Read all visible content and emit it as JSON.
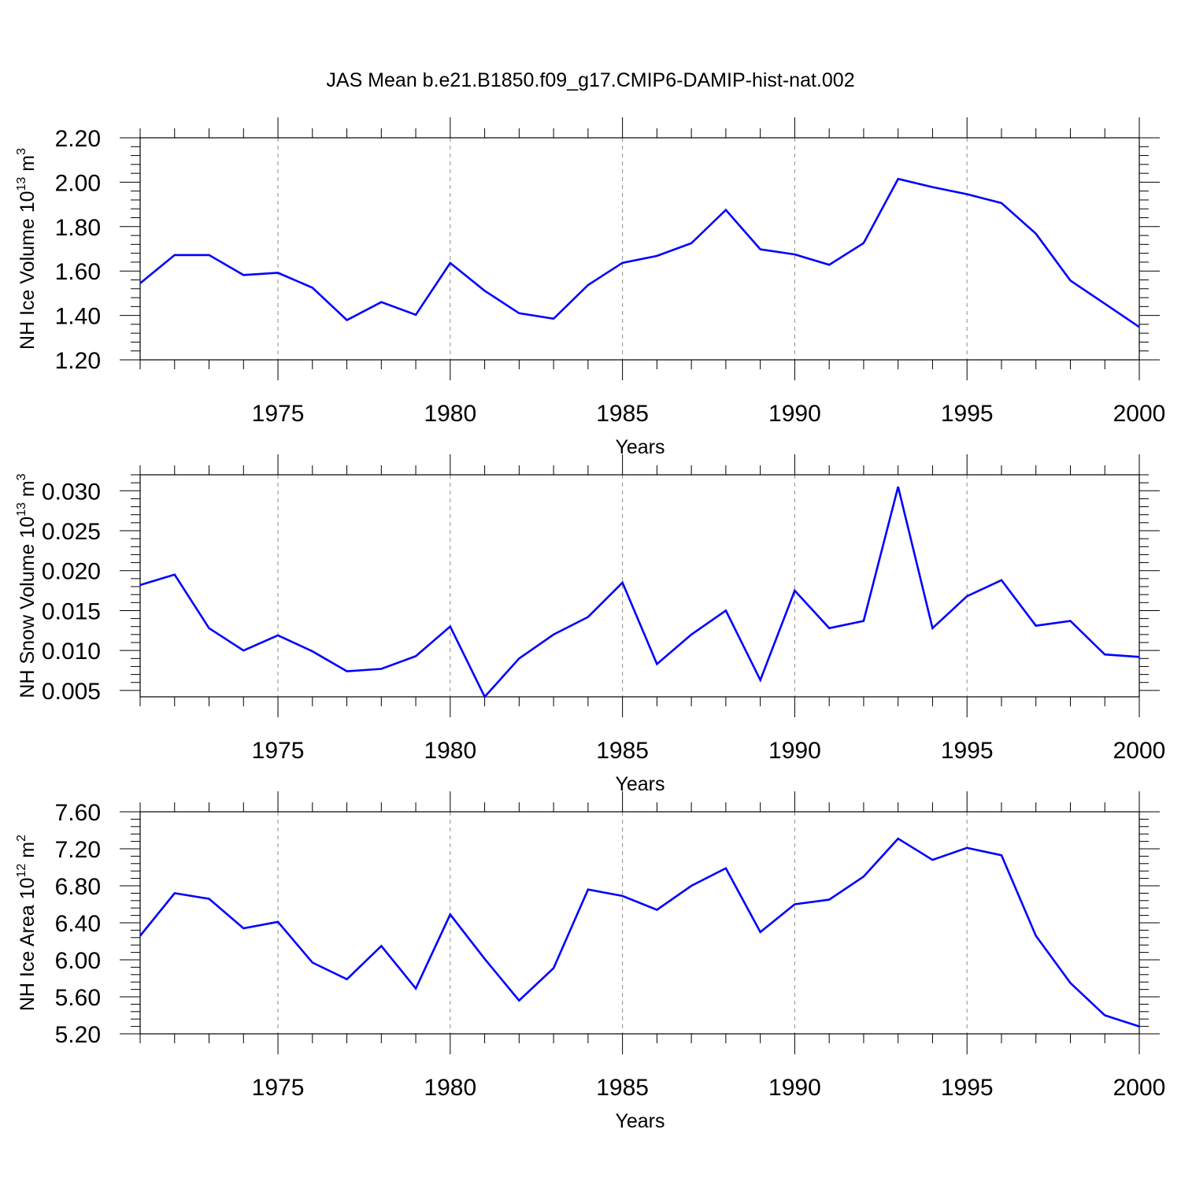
{
  "title": "JAS Mean b.e21.B1850.f09_g17.CMIP6-DAMIP-hist-nat.002",
  "line_color": "#0000ff",
  "chart_data": [
    {
      "type": "line",
      "xlabel": "Years",
      "ylabel": "NH Ice Volume 10",
      "ylabel_exp": "13",
      "ylabel_unit": " m",
      "ylabel_unit_exp": "3",
      "xlim": [
        1971,
        2000
      ],
      "ylim": [
        1.2,
        2.2
      ],
      "x_ticks": [
        1975,
        1980,
        1985,
        1990,
        1995,
        2000
      ],
      "x_tick_labels": [
        "1975",
        "1980",
        "1985",
        "1990",
        "1995",
        "2000"
      ],
      "y_ticks": [
        1.2,
        1.4,
        1.6,
        1.8,
        2.0,
        2.2
      ],
      "y_tick_labels": [
        "1.20",
        "1.40",
        "1.60",
        "1.80",
        "2.00",
        "2.20"
      ],
      "x": [
        1971,
        1972,
        1973,
        1974,
        1975,
        1976,
        1977,
        1978,
        1979,
        1980,
        1981,
        1982,
        1983,
        1984,
        1985,
        1986,
        1987,
        1988,
        1989,
        1990,
        1991,
        1992,
        1993,
        1994,
        1995,
        1996,
        1997,
        1998,
        1999,
        2000
      ],
      "values": [
        1.545,
        1.672,
        1.672,
        1.582,
        1.592,
        1.525,
        1.379,
        1.46,
        1.403,
        1.636,
        1.511,
        1.41,
        1.385,
        1.537,
        1.637,
        1.668,
        1.725,
        1.875,
        1.698,
        1.675,
        1.628,
        1.726,
        2.015,
        1.978,
        1.946,
        1.906,
        1.768,
        1.557,
        1.453,
        1.348
      ]
    },
    {
      "type": "line",
      "xlabel": "Years",
      "ylabel": "NH Snow Volume 10",
      "ylabel_exp": "13",
      "ylabel_unit": " m",
      "ylabel_unit_exp": "3",
      "xlim": [
        1971,
        2000
      ],
      "ylim": [
        0.0042,
        0.032
      ],
      "x_ticks": [
        1975,
        1980,
        1985,
        1990,
        1995,
        2000
      ],
      "x_tick_labels": [
        "1975",
        "1980",
        "1985",
        "1990",
        "1995",
        "2000"
      ],
      "y_ticks": [
        0.005,
        0.01,
        0.015,
        0.02,
        0.025,
        0.03
      ],
      "y_tick_labels": [
        "0.005",
        "0.010",
        "0.015",
        "0.020",
        "0.025",
        "0.030"
      ],
      "x": [
        1971,
        1972,
        1973,
        1974,
        1975,
        1976,
        1977,
        1978,
        1979,
        1980,
        1981,
        1982,
        1983,
        1984,
        1985,
        1986,
        1987,
        1988,
        1989,
        1990,
        1991,
        1992,
        1993,
        1994,
        1995,
        1996,
        1997,
        1998,
        1999,
        2000
      ],
      "values": [
        0.0182,
        0.0195,
        0.0128,
        0.01,
        0.0119,
        0.0099,
        0.0074,
        0.0077,
        0.0093,
        0.013,
        0.0042,
        0.009,
        0.012,
        0.0142,
        0.0185,
        0.0083,
        0.012,
        0.015,
        0.0063,
        0.0175,
        0.0128,
        0.0137,
        0.0305,
        0.0128,
        0.0168,
        0.0188,
        0.0131,
        0.0137,
        0.0095,
        0.0092
      ]
    },
    {
      "type": "line",
      "xlabel": "Years",
      "ylabel": "NH Ice Area 10",
      "ylabel_exp": "12",
      "ylabel_unit": " m",
      "ylabel_unit_exp": "2",
      "xlim": [
        1971,
        2000
      ],
      "ylim": [
        5.2,
        7.6
      ],
      "x_ticks": [
        1975,
        1980,
        1985,
        1990,
        1995,
        2000
      ],
      "x_tick_labels": [
        "1975",
        "1980",
        "1985",
        "1990",
        "1995",
        "2000"
      ],
      "y_ticks": [
        5.2,
        5.6,
        6.0,
        6.4,
        6.8,
        7.2,
        7.6
      ],
      "y_tick_labels": [
        "5.20",
        "5.60",
        "6.00",
        "6.40",
        "6.80",
        "7.20",
        "7.60"
      ],
      "x": [
        1971,
        1972,
        1973,
        1974,
        1975,
        1976,
        1977,
        1978,
        1979,
        1980,
        1981,
        1982,
        1983,
        1984,
        1985,
        1986,
        1987,
        1988,
        1989,
        1990,
        1991,
        1992,
        1993,
        1994,
        1995,
        1996,
        1997,
        1998,
        1999,
        2000
      ],
      "values": [
        6.26,
        6.72,
        6.66,
        6.34,
        6.41,
        5.97,
        5.79,
        6.15,
        5.69,
        6.49,
        6.01,
        5.56,
        5.91,
        6.76,
        6.69,
        6.54,
        6.8,
        6.99,
        6.3,
        6.6,
        6.65,
        6.9,
        7.31,
        7.08,
        7.21,
        7.13,
        6.26,
        5.75,
        5.4,
        5.28
      ]
    }
  ]
}
